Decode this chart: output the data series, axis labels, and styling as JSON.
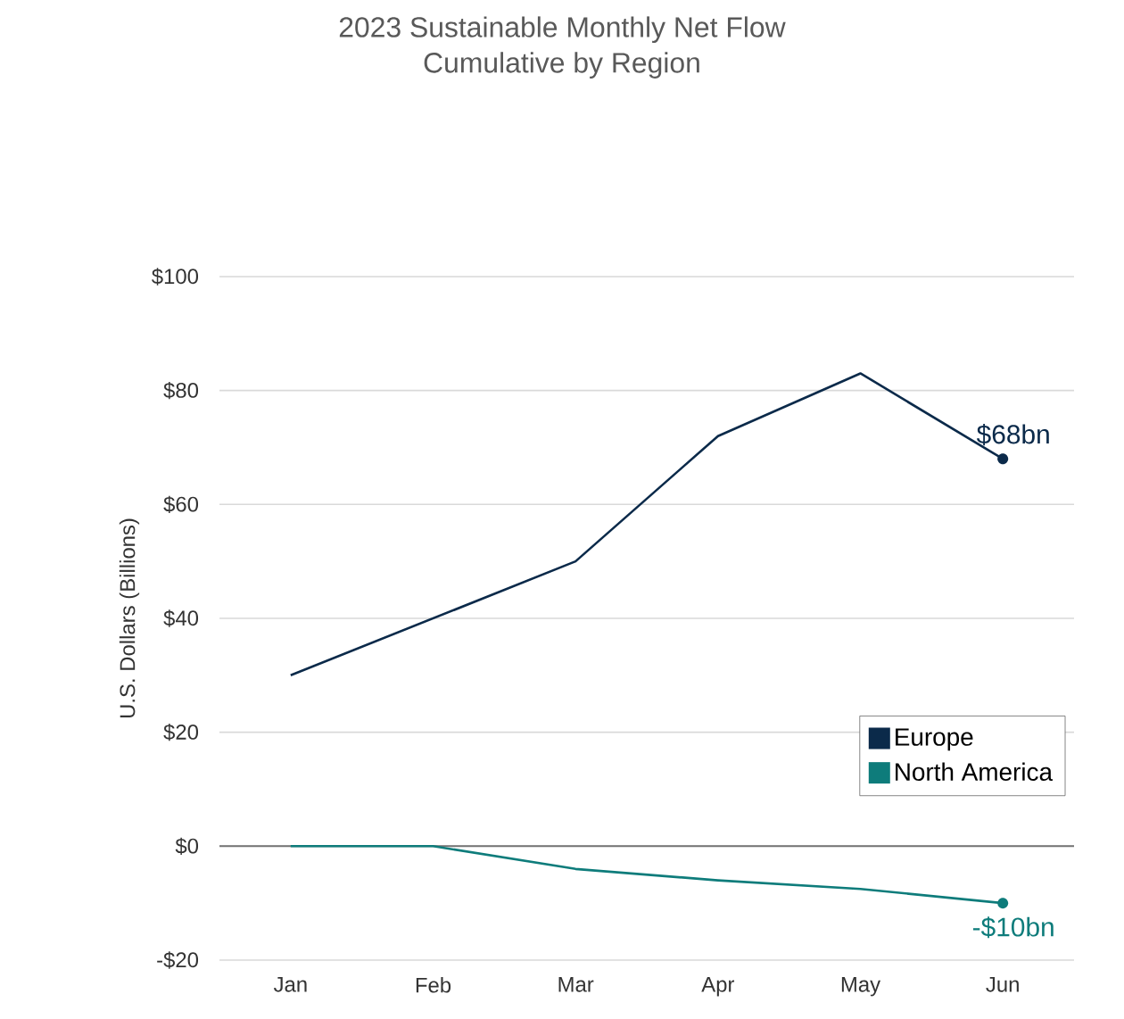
{
  "chart_data": {
    "type": "line",
    "title": "2023 Sustainable Monthly Net Flow\nCumulative by Region",
    "ylabel": "U.S. Dollars (Billions)",
    "categories": [
      "Jan",
      "Feb",
      "Mar",
      "Apr",
      "May",
      "Jun"
    ],
    "series": [
      {
        "name": "Europe",
        "color": "#0b2a4a",
        "values": [
          30,
          40,
          50,
          72,
          83,
          68
        ],
        "value_labels": [
          null,
          null,
          null,
          null,
          null,
          "$68bn"
        ]
      },
      {
        "name": "North America",
        "color": "#0e7c7b",
        "values": [
          0,
          0,
          -4,
          -6,
          -7.5,
          -10
        ],
        "value_labels": [
          null,
          null,
          null,
          null,
          null,
          "-$10bn"
        ]
      }
    ],
    "ylim": [
      -20,
      100
    ],
    "yticks": [
      {
        "value": -20,
        "label": "-$20"
      },
      {
        "value": 0,
        "label": "$0"
      },
      {
        "value": 20,
        "label": "$20"
      },
      {
        "value": 40,
        "label": "$40"
      },
      {
        "value": 60,
        "label": "$60"
      },
      {
        "value": 80,
        "label": "$80"
      },
      {
        "value": 100,
        "label": "$100"
      }
    ],
    "grid": "y",
    "legend": "right",
    "marker": "none",
    "line_style": "solid"
  }
}
